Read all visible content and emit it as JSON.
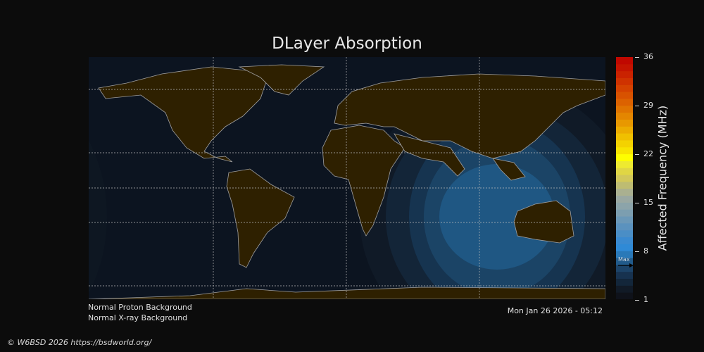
{
  "title": "DLayer Absorption",
  "colorbar": {
    "label": "Affected Frequency (MHz)",
    "ticks": [
      "36",
      "29",
      "22",
      "15",
      "8",
      "1"
    ],
    "range": [
      1,
      36
    ],
    "max_marker_label": "Max",
    "max_marker_value": 5.5,
    "colors": [
      "#0f121a",
      "#111a26",
      "#13263a",
      "#17324f",
      "#1c4368",
      "#215a8a",
      "#2a79b8",
      "#2f8ad6",
      "#3a8ad0",
      "#4a8ec6",
      "#5b92be",
      "#6b98b8",
      "#7c9eb0",
      "#8ca4aa",
      "#9aa8a2",
      "#aab090",
      "#bebc72",
      "#d2c85a",
      "#e0d644",
      "#eeea30",
      "#fefe00",
      "#f8e400",
      "#f4d200",
      "#f0c000",
      "#ecac00",
      "#e89800",
      "#e48600",
      "#e07400",
      "#dc6200",
      "#d85200",
      "#d44200",
      "#cf3200",
      "#ca2200",
      "#c41400",
      "#c00800"
    ]
  },
  "status": {
    "proton": "Normal Proton Background",
    "xray": "Normal X-ray Background",
    "timestamp": "Mon Jan 26 2026 - 05:12"
  },
  "footer": "© W6BSD 2026 https://bsdworld.org/",
  "colors": {
    "land": "#2e2000",
    "ocean": "#0c1420",
    "coast": "#a0a0a0",
    "grid": "#bbbbbb"
  }
}
